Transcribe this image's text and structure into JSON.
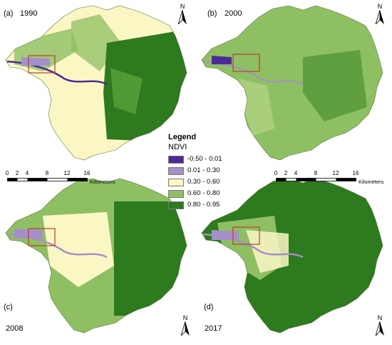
{
  "panels": [
    {
      "id": "a",
      "label": "(a)",
      "year": "1990"
    },
    {
      "id": "b",
      "label": "(b)",
      "year": "2000"
    },
    {
      "id": "c",
      "label": "(c)",
      "year": "2008"
    },
    {
      "id": "d",
      "label": "(d)",
      "year": "2017"
    }
  ],
  "north_label": "N",
  "scale": {
    "ticks": [
      "0",
      "2",
      "4",
      "8",
      "12",
      "16"
    ],
    "unit": "Kilometers"
  },
  "legend": {
    "title": "Legend",
    "subtitle": "NDVI",
    "classes": [
      {
        "label": "-0.50 - 0.01",
        "color": "#4b2a96"
      },
      {
        "label": "0.01 - 0.30",
        "color": "#a68fc7"
      },
      {
        "label": "0.30 - 0.60",
        "color": "#fbf7c5"
      },
      {
        "label": "0.60 - 0.80",
        "color": "#8fbf63"
      },
      {
        "label": "0.80 - 0.95",
        "color": "#2d7a1f"
      }
    ]
  },
  "inset_box_color": "#b5432a"
}
